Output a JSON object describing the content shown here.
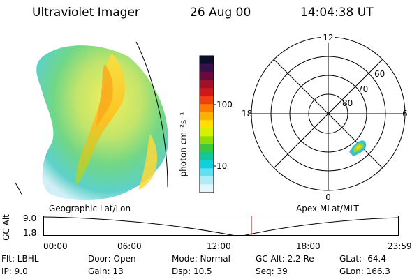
{
  "header": {
    "instrument": "Ultraviolet Imager",
    "date": "26 Aug 00",
    "time": "14:04:38 UT"
  },
  "colorbar": {
    "label": "photon cm⁻²s⁻¹",
    "tick_top": "100",
    "tick_bottom": "10",
    "colors": [
      "#0d0d2e",
      "#3b0d4d",
      "#6b0a3a",
      "#a0102a",
      "#d01818",
      "#f04010",
      "#ff7a00",
      "#ffb000",
      "#ffe000",
      "#d8f000",
      "#8ce000",
      "#3cc83c",
      "#10c8a0",
      "#10d0e0",
      "#60e0f0",
      "#b0ecf8",
      "#e4f6fb"
    ]
  },
  "left_panel": {
    "label": "Geographic Lat/Lon"
  },
  "right_panel": {
    "label": "Apex MLat/MLT",
    "mlt_labels": {
      "top": "12",
      "left": "18",
      "right": "6",
      "bottom": "0"
    },
    "lat_labels": [
      "60",
      "70",
      "80"
    ]
  },
  "timeline": {
    "ylabel": "GC Alt",
    "ytick_top": "9.0",
    "ytick_bottom": "1.8",
    "xticks": [
      "00:00",
      "06:00",
      "12:00",
      "18:00",
      "23:59"
    ],
    "marker_color": "#c00000"
  },
  "footer": {
    "flt": "Flt: LBHL",
    "door": "Door: Open",
    "mode": "Mode: Normal",
    "gc_alt": "GC Alt: 2.2 Re",
    "glat": "GLat: -64.4",
    "ip": "IP:  9.0",
    "gain": "Gain: 13",
    "dsp": "Dsp:    10.5",
    "seq": "Seq: 39",
    "glon": "GLon: 166.3"
  }
}
